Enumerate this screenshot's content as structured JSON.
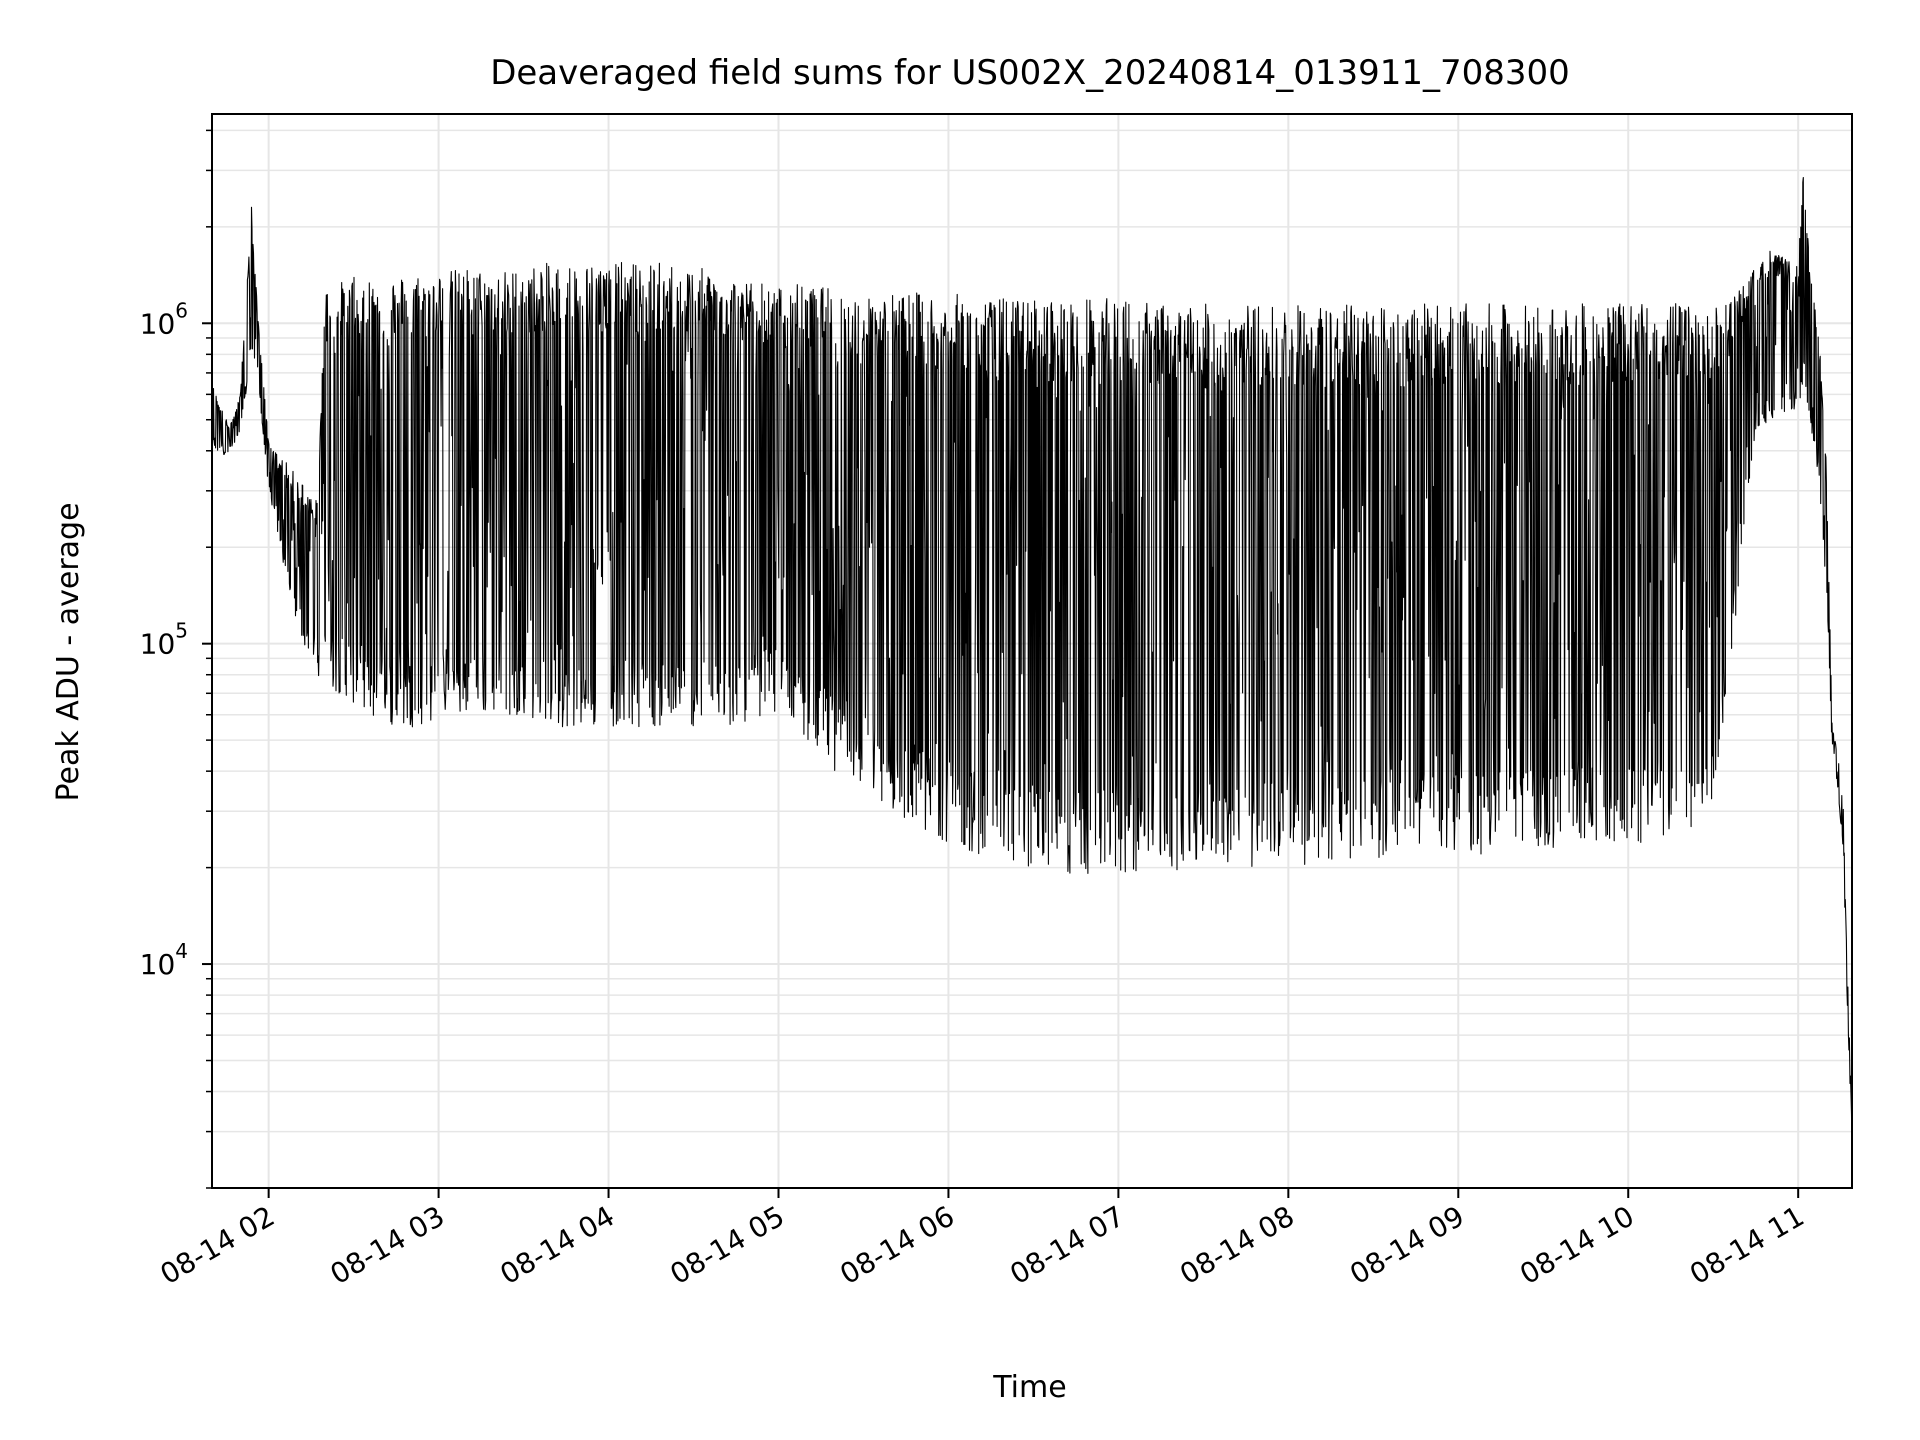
{
  "chart_data": {
    "type": "line",
    "title": "Deaveraged field sums for US002X_20240814_013911_708300",
    "xlabel": "Time",
    "ylabel": "Peak ADU - average",
    "yscale": "log",
    "grid": true,
    "line_color": "#000000",
    "xlim": [
      "08-14 01:40",
      "08-14 11:19"
    ],
    "ylim": [
      2000,
      4500000
    ],
    "x_ticks": [
      "08-14 02",
      "08-14 03",
      "08-14 04",
      "08-14 05",
      "08-14 06",
      "08-14 07",
      "08-14 08",
      "08-14 09",
      "08-14 10",
      "08-14 11"
    ],
    "y_ticks": [
      {
        "base": "10",
        "exp": "4",
        "value": 10000
      },
      {
        "base": "10",
        "exp": "5",
        "value": 100000
      },
      {
        "base": "10",
        "exp": "6",
        "value": 1000000
      }
    ],
    "series": [
      {
        "x": [
          "08-14 01:40",
          "08-14 01:43",
          "08-14 01:46",
          "08-14 01:48",
          "08-14 01:50",
          "08-14 01:52",
          "08-14 01:54",
          "08-14 01:56",
          "08-14 01:58",
          "08-14 02:00",
          "08-14 02:02",
          "08-14 02:05",
          "08-14 02:08",
          "08-14 02:11",
          "08-14 02:14",
          "08-14 02:17",
          "08-14 02:20",
          "08-14 02:23",
          "08-14 02:26",
          "08-14 02:30",
          "08-14 02:35",
          "08-14 02:40",
          "08-14 02:45",
          "08-14 02:50",
          "08-14 02:55",
          "08-14 03:00",
          "08-14 03:10",
          "08-14 03:20",
          "08-14 03:30",
          "08-14 03:40",
          "08-14 03:50",
          "08-14 04:00",
          "08-14 04:10",
          "08-14 04:20",
          "08-14 04:30",
          "08-14 04:40",
          "08-14 04:45",
          "08-14 04:50",
          "08-14 04:55",
          "08-14 05:00",
          "08-14 05:05",
          "08-14 05:10",
          "08-14 05:15",
          "08-14 05:20",
          "08-14 05:25",
          "08-14 05:30",
          "08-14 05:35",
          "08-14 05:40",
          "08-14 05:45",
          "08-14 05:50",
          "08-14 05:55",
          "08-14 06:00",
          "08-14 06:10",
          "08-14 06:20",
          "08-14 06:30",
          "08-14 06:40",
          "08-14 06:50",
          "08-14 07:00",
          "08-14 07:15",
          "08-14 07:30",
          "08-14 07:45",
          "08-14 08:00",
          "08-14 08:15",
          "08-14 08:30",
          "08-14 08:45",
          "08-14 09:00",
          "08-14 09:15",
          "08-14 09:30",
          "08-14 09:45",
          "08-14 10:00",
          "08-14 10:10",
          "08-14 10:20",
          "08-14 10:30",
          "08-14 10:35",
          "08-14 10:40",
          "08-14 10:45",
          "08-14 10:50",
          "08-14 10:55",
          "08-14 11:00",
          "08-14 11:02",
          "08-14 11:04",
          "08-14 11:06",
          "08-14 11:08",
          "08-14 11:10",
          "08-14 11:12",
          "08-14 11:14",
          "08-14 11:16",
          "08-14 11:17",
          "08-14 11:18",
          "08-14 11:19"
        ],
        "high": [
          650000,
          550000,
          480000,
          520000,
          600000,
          1200000,
          2400000,
          1100000,
          700000,
          420000,
          400000,
          380000,
          350000,
          330000,
          300000,
          280000,
          1300000,
          1400000,
          1350000,
          1400000,
          1400000,
          1450000,
          1400000,
          1450000,
          1450000,
          1450000,
          1500000,
          1450000,
          1500000,
          1550000,
          1550000,
          1550000,
          1550000,
          1550000,
          1500000,
          1450000,
          1400000,
          1350000,
          1350000,
          1300000,
          1350000,
          1300000,
          1300000,
          1300000,
          1250000,
          1250000,
          1250000,
          1250000,
          1250000,
          1250000,
          1250000,
          1250000,
          1200000,
          1200000,
          1200000,
          1200000,
          1200000,
          1200000,
          1150000,
          1150000,
          1150000,
          1150000,
          1150000,
          1150000,
          1150000,
          1150000,
          1150000,
          1150000,
          1150000,
          1150000,
          1200000,
          1150000,
          1100000,
          1200000,
          1300000,
          1500000,
          1700000,
          1600000,
          1500000,
          3200000,
          1500000,
          1100000,
          800000,
          350000,
          55000,
          45000,
          30000,
          12000,
          6500,
          3000
        ],
        "low": [
          420000,
          380000,
          400000,
          420000,
          450000,
          600000,
          800000,
          700000,
          450000,
          300000,
          250000,
          180000,
          130000,
          110000,
          90000,
          80000,
          75000,
          70000,
          70000,
          65000,
          60000,
          55000,
          55000,
          55000,
          55000,
          60000,
          60000,
          60000,
          60000,
          55000,
          55000,
          55000,
          55000,
          55000,
          55000,
          55000,
          55000,
          58000,
          60000,
          60000,
          55000,
          50000,
          45000,
          40000,
          38000,
          35000,
          33000,
          30000,
          28000,
          26000,
          25000,
          24000,
          22000,
          21000,
          20000,
          19000,
          18500,
          19000,
          19500,
          20000,
          20000,
          20000,
          21000,
          21000,
          21500,
          22000,
          22000,
          22500,
          23000,
          23000,
          24000,
          25000,
          30000,
          60000,
          200000,
          450000,
          500000,
          500000,
          550000,
          600000,
          500000,
          400000,
          250000,
          150000,
          45000,
          35000,
          22000,
          9000,
          5000,
          2500
        ]
      }
    ]
  }
}
